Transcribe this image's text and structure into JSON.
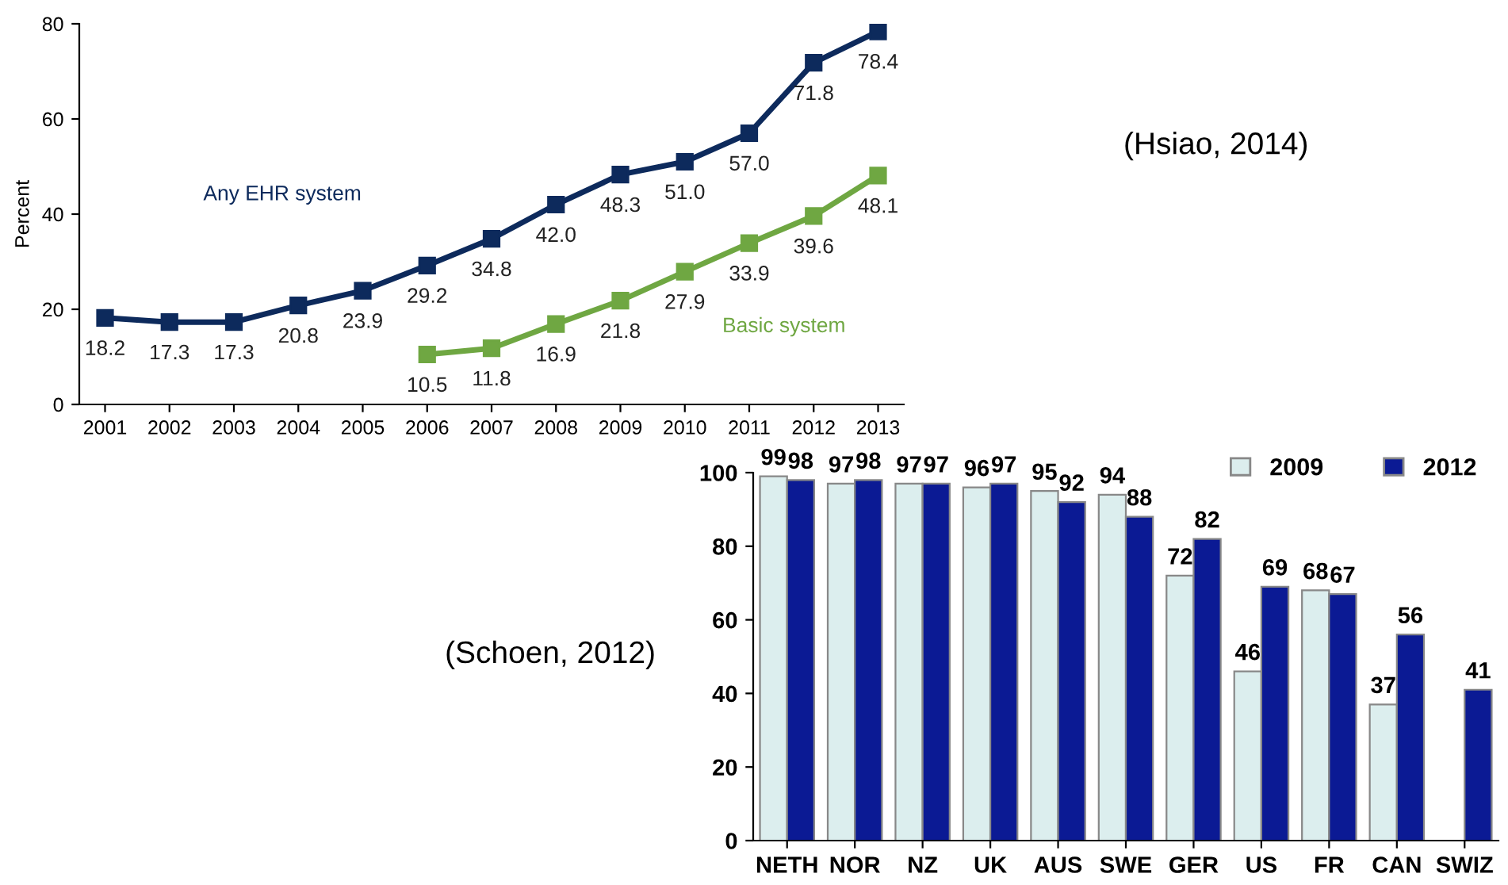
{
  "chart_data": [
    {
      "type": "line",
      "ylabel": "Percent",
      "x": [
        2001,
        2002,
        2003,
        2004,
        2005,
        2006,
        2007,
        2008,
        2009,
        2010,
        2011,
        2012,
        2013
      ],
      "xlim": [
        2000.6,
        2013.4
      ],
      "xticks": [
        2001,
        2002,
        2003,
        2004,
        2005,
        2006,
        2007,
        2008,
        2009,
        2010,
        2011,
        2012,
        2013
      ],
      "ylim": [
        0,
        80
      ],
      "yticks": [
        0,
        20,
        40,
        60,
        80
      ],
      "marker": "square",
      "line_style": "solid",
      "grid": false,
      "legend": false,
      "data_labels": true,
      "annotations": [
        "(Hsiao, 2014)"
      ],
      "series": [
        {
          "name": "Any EHR system",
          "color": "#0d2a5c",
          "values": [
            18.2,
            17.3,
            17.3,
            20.8,
            23.9,
            29.2,
            34.8,
            42.0,
            48.3,
            51.0,
            57.0,
            71.8,
            78.4
          ],
          "value_labels": [
            "18.2",
            "17.3",
            "17.3",
            "20.8",
            "23.9",
            "29.2",
            "34.8",
            "42.0",
            "48.3",
            "51.0",
            "57.0",
            "71.8",
            "78.4"
          ]
        },
        {
          "name": "Basic system",
          "color": "#6fa742",
          "values": [
            null,
            null,
            null,
            null,
            null,
            10.5,
            11.8,
            16.9,
            21.8,
            27.9,
            33.9,
            39.6,
            48.1
          ]
        }
      ]
    },
    {
      "type": "bar",
      "categories": [
        "NETH",
        "NOR",
        "NZ",
        "UK",
        "AUS",
        "SWE",
        "GER",
        "US",
        "FR",
        "CAN",
        "SWIZ"
      ],
      "ylim": [
        0,
        100
      ],
      "yticks": [
        0,
        20,
        40,
        60,
        80,
        100
      ],
      "grid": false,
      "legend": "top right",
      "data_labels": true,
      "annotations": [
        "(Schoen, 2012)"
      ],
      "series": [
        {
          "name": "2009",
          "color": "#dceeee",
          "values": [
            99,
            97,
            97,
            96,
            95,
            94,
            72,
            46,
            68,
            37,
            null
          ]
        },
        {
          "name": "2012",
          "color": "#0b1a94",
          "values": [
            98,
            98,
            97,
            97,
            92,
            88,
            82,
            69,
            67,
            56,
            41
          ]
        }
      ]
    }
  ]
}
